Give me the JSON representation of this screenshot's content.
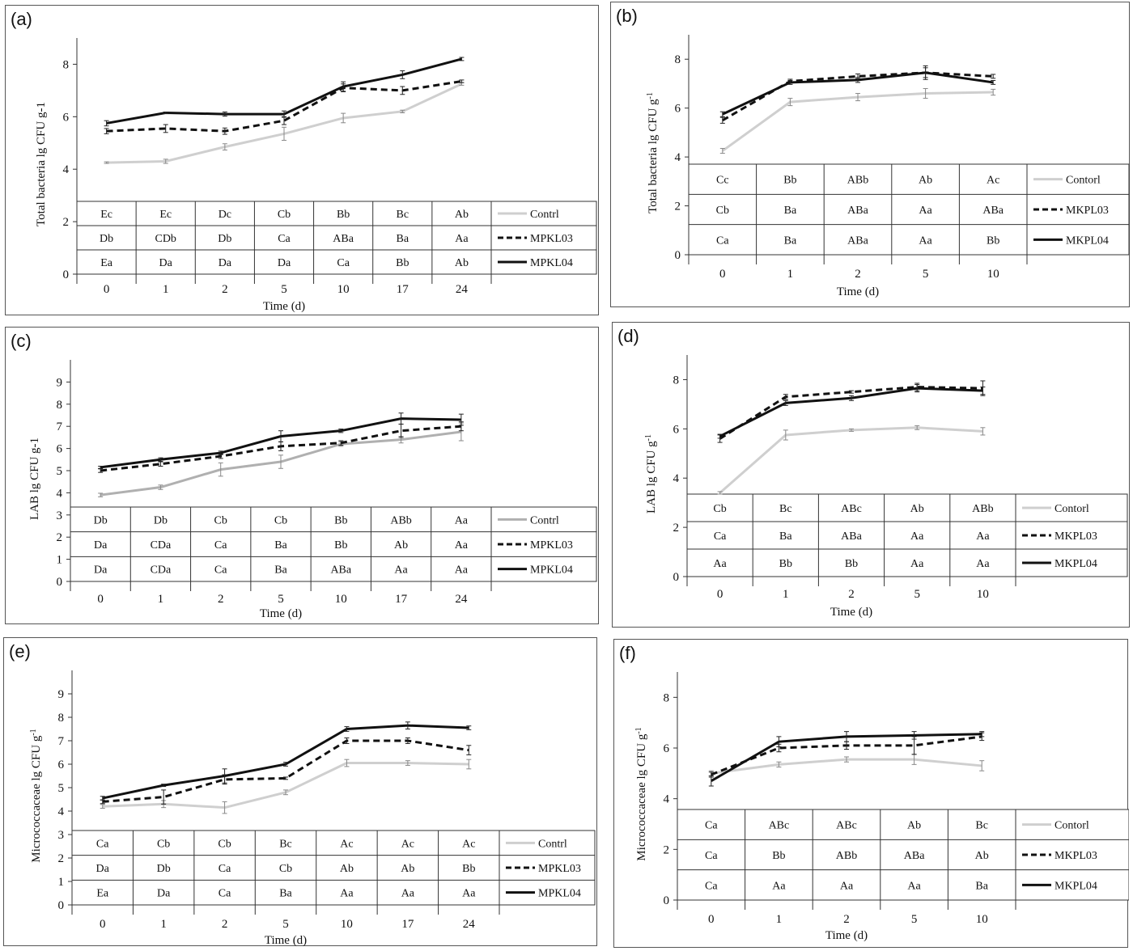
{
  "chart_data": [
    {
      "panel_label": "(a)",
      "type": "line",
      "x": [
        "0",
        "1",
        "2",
        "5",
        "10",
        "17",
        "24"
      ],
      "xlabel": "Time (d)",
      "ylabel": "Total bacteria lg CFU g-1",
      "ylim": [
        0,
        9
      ],
      "yticks": [
        0,
        2,
        4,
        6,
        8
      ],
      "grid": false,
      "legend_position": "right-of-table",
      "series": [
        {
          "name": "Contrl",
          "color": "#cfcfcf",
          "dash": "solid",
          "values": [
            4.25,
            4.3,
            4.85,
            5.35,
            5.95,
            6.2,
            7.25
          ],
          "errors": [
            0.03,
            0.08,
            0.12,
            0.25,
            0.18,
            0.05,
            0.05
          ],
          "letters": [
            "Ec",
            "Ec",
            "Dc",
            "Cb",
            "Bb",
            "Bc",
            "Ab"
          ]
        },
        {
          "name": "MPKL03",
          "color": "#111111",
          "dash": "dashed",
          "values": [
            5.45,
            5.55,
            5.45,
            5.85,
            7.1,
            7.0,
            7.35
          ],
          "errors": [
            0.1,
            0.15,
            0.12,
            0.15,
            0.15,
            0.15,
            0.05
          ],
          "letters": [
            "Db",
            "CDb",
            "Db",
            "Ca",
            "ABa",
            "Ba",
            "Aa"
          ]
        },
        {
          "name": "MPKL04",
          "color": "#111111",
          "dash": "solid",
          "values": [
            5.75,
            6.15,
            6.1,
            6.1,
            7.15,
            7.6,
            8.2
          ],
          "errors": [
            0.1,
            0.03,
            0.08,
            0.12,
            0.18,
            0.15,
            0.06
          ],
          "letters": [
            "Ea",
            "Da",
            "Da",
            "Da",
            "Ca",
            "Bb",
            "Ab"
          ]
        }
      ]
    },
    {
      "panel_label": "(b)",
      "type": "line",
      "x": [
        "0",
        "1",
        "2",
        "5",
        "10"
      ],
      "xlabel": "Time (d)",
      "ylabel": "Total bacteria lg CFU g",
      "ylabel_sup": "-1",
      "ylim": [
        0,
        9
      ],
      "yticks": [
        0,
        2,
        4,
        6,
        8
      ],
      "grid": false,
      "legend_position": "right-of-table",
      "series": [
        {
          "name": "Contorl",
          "color": "#cfcfcf",
          "dash": "solid",
          "values": [
            4.25,
            6.25,
            6.45,
            6.6,
            6.65
          ],
          "errors": [
            0.1,
            0.15,
            0.15,
            0.2,
            0.12
          ],
          "letters": [
            "Cc",
            "Bb",
            "ABb",
            "Ab",
            "Ac"
          ]
        },
        {
          "name": "MKPL03",
          "color": "#111111",
          "dash": "dashed",
          "values": [
            5.5,
            7.1,
            7.3,
            7.45,
            7.3
          ],
          "errors": [
            0.12,
            0.08,
            0.1,
            0.28,
            0.08
          ],
          "letters": [
            "Cb",
            "Ba",
            "ABa",
            "Aa",
            "ABa"
          ]
        },
        {
          "name": "MKPL04",
          "color": "#111111",
          "dash": "solid",
          "values": [
            5.75,
            7.05,
            7.15,
            7.45,
            7.05
          ],
          "errors": [
            0.1,
            0.08,
            0.1,
            0.2,
            0.08
          ],
          "letters": [
            "Ca",
            "Ba",
            "ABa",
            "Aa",
            "Bb"
          ]
        }
      ]
    },
    {
      "panel_label": "(c)",
      "type": "line",
      "x": [
        "0",
        "1",
        "2",
        "5",
        "10",
        "17",
        "24"
      ],
      "xlabel": "Time (d)",
      "ylabel": "LAB lg CFU g-1",
      "ylim": [
        0,
        10
      ],
      "yticks": [
        0,
        1,
        2,
        3,
        4,
        5,
        6,
        7,
        8,
        9
      ],
      "grid": false,
      "legend_position": "right-of-table",
      "series": [
        {
          "name": "Contrl",
          "color": "#b0b0b0",
          "dash": "solid",
          "values": [
            3.9,
            4.25,
            5.05,
            5.4,
            6.2,
            6.4,
            6.75
          ],
          "errors": [
            0.08,
            0.1,
            0.3,
            0.3,
            0.1,
            0.15,
            0.4
          ],
          "letters": [
            "Db",
            "Db",
            "Cb",
            "Cb",
            "Bb",
            "ABb",
            "Aa"
          ]
        },
        {
          "name": "MPKL03",
          "color": "#111111",
          "dash": "dashed",
          "values": [
            5.0,
            5.3,
            5.65,
            6.1,
            6.25,
            6.8,
            7.0
          ],
          "errors": [
            0.08,
            0.1,
            0.1,
            0.2,
            0.1,
            0.3,
            0.2
          ],
          "letters": [
            "Da",
            "CDa",
            "Ca",
            "Ba",
            "Bb",
            "Ab",
            "Aa"
          ]
        },
        {
          "name": "MPKL04",
          "color": "#111111",
          "dash": "solid",
          "values": [
            5.15,
            5.5,
            5.8,
            6.55,
            6.8,
            7.35,
            7.3
          ],
          "errors": [
            0.05,
            0.08,
            0.08,
            0.25,
            0.08,
            0.25,
            0.25
          ],
          "letters": [
            "Da",
            "CDa",
            "Ca",
            "Ba",
            "ABa",
            "Aa",
            "Aa"
          ]
        }
      ]
    },
    {
      "panel_label": "(d)",
      "type": "line",
      "x": [
        "0",
        "1",
        "2",
        "5",
        "10"
      ],
      "xlabel": "Time (d)",
      "ylabel": "LAB lg CFU g",
      "ylabel_sup": "-1",
      "ylim": [
        0,
        9
      ],
      "yticks": [
        0,
        2,
        4,
        6,
        8
      ],
      "grid": false,
      "legend_position": "right-of-table",
      "series": [
        {
          "name": "Contorl",
          "color": "#cfcfcf",
          "dash": "solid",
          "values": [
            3.4,
            5.75,
            5.95,
            6.05,
            5.9
          ],
          "errors": [
            0.05,
            0.2,
            0.05,
            0.08,
            0.15
          ],
          "letters": [
            "Cb",
            "Bc",
            "ABc",
            "Ab",
            "ABb"
          ]
        },
        {
          "name": "MKPL03",
          "color": "#111111",
          "dash": "dashed",
          "values": [
            5.6,
            7.3,
            7.5,
            7.7,
            7.65
          ],
          "errors": [
            0.15,
            0.1,
            0.05,
            0.15,
            0.3
          ],
          "letters": [
            "Ca",
            "Ba",
            "ABa",
            "Aa",
            "Aa"
          ]
        },
        {
          "name": "MKPL04",
          "color": "#111111",
          "dash": "solid",
          "values": [
            5.7,
            7.05,
            7.25,
            7.65,
            7.55
          ],
          "errors": [
            0.08,
            0.1,
            0.1,
            0.15,
            0.15
          ],
          "letters": [
            "Aa",
            "Bb",
            "Bb",
            "Aa",
            "Aa"
          ]
        }
      ]
    },
    {
      "panel_label": "(e)",
      "type": "line",
      "x": [
        "0",
        "1",
        "2",
        "5",
        "10",
        "17",
        "24"
      ],
      "xlabel": "Time (d)",
      "ylabel": "Micrococcaceae lg CFU g",
      "ylabel_sup": "-1",
      "ylim": [
        0,
        10
      ],
      "yticks": [
        0,
        1,
        2,
        3,
        4,
        5,
        6,
        7,
        8,
        9
      ],
      "grid": false,
      "legend_position": "right-of-table",
      "series": [
        {
          "name": "Contrl",
          "color": "#cfcfcf",
          "dash": "solid",
          "values": [
            4.2,
            4.3,
            4.15,
            4.8,
            6.05,
            6.05,
            6.0
          ],
          "errors": [
            0.08,
            0.15,
            0.25,
            0.1,
            0.15,
            0.1,
            0.2
          ],
          "letters": [
            "Ca",
            "Cb",
            "Cb",
            "Bc",
            "Ac",
            "Ac",
            "Ac"
          ]
        },
        {
          "name": "MPKL03",
          "color": "#111111",
          "dash": "dashed",
          "values": [
            4.4,
            4.6,
            5.35,
            5.4,
            7.0,
            7.0,
            6.6
          ],
          "errors": [
            0.08,
            0.3,
            0.2,
            0.05,
            0.12,
            0.12,
            0.2
          ],
          "letters": [
            "Da",
            "Db",
            "Ca",
            "Cb",
            "Ab",
            "Ab",
            "Bb"
          ]
        },
        {
          "name": "MPKL04",
          "color": "#111111",
          "dash": "solid",
          "values": [
            4.55,
            5.1,
            5.5,
            6.0,
            7.5,
            7.65,
            7.55
          ],
          "errors": [
            0.08,
            0.05,
            0.3,
            0.08,
            0.1,
            0.15,
            0.08
          ],
          "letters": [
            "Ea",
            "Da",
            "Ca",
            "Ba",
            "Aa",
            "Aa",
            "Aa"
          ]
        }
      ]
    },
    {
      "panel_label": "(f)",
      "type": "line",
      "x": [
        "0",
        "1",
        "2",
        "5",
        "10"
      ],
      "xlabel": "Time (d)",
      "ylabel": "Micrococcaceae  lg CFU g",
      "ylabel_sup": "-1",
      "ylim": [
        0,
        9
      ],
      "yticks": [
        0,
        2,
        4,
        6,
        8
      ],
      "grid": false,
      "legend_position": "right-of-table",
      "series": [
        {
          "name": "Contorl",
          "color": "#cfcfcf",
          "dash": "solid",
          "values": [
            5.0,
            5.35,
            5.55,
            5.55,
            5.3
          ],
          "errors": [
            0.1,
            0.1,
            0.1,
            0.2,
            0.2
          ],
          "letters": [
            "Ca",
            "ABc",
            "ABc",
            "Ab",
            "Bc"
          ]
        },
        {
          "name": "MKPL03",
          "color": "#111111",
          "dash": "dashed",
          "values": [
            4.95,
            6.0,
            6.1,
            6.1,
            6.45
          ],
          "errors": [
            0.1,
            0.15,
            0.15,
            0.35,
            0.15
          ],
          "letters": [
            "Ca",
            "Bb",
            "ABb",
            "ABa",
            "Ab"
          ]
        },
        {
          "name": "MKPL04",
          "color": "#111111",
          "dash": "solid",
          "values": [
            4.7,
            6.25,
            6.45,
            6.5,
            6.55
          ],
          "errors": [
            0.2,
            0.2,
            0.2,
            0.15,
            0.1
          ],
          "letters": [
            "Ca",
            "Aa",
            "Aa",
            "Aa",
            "Ba"
          ]
        }
      ]
    }
  ]
}
